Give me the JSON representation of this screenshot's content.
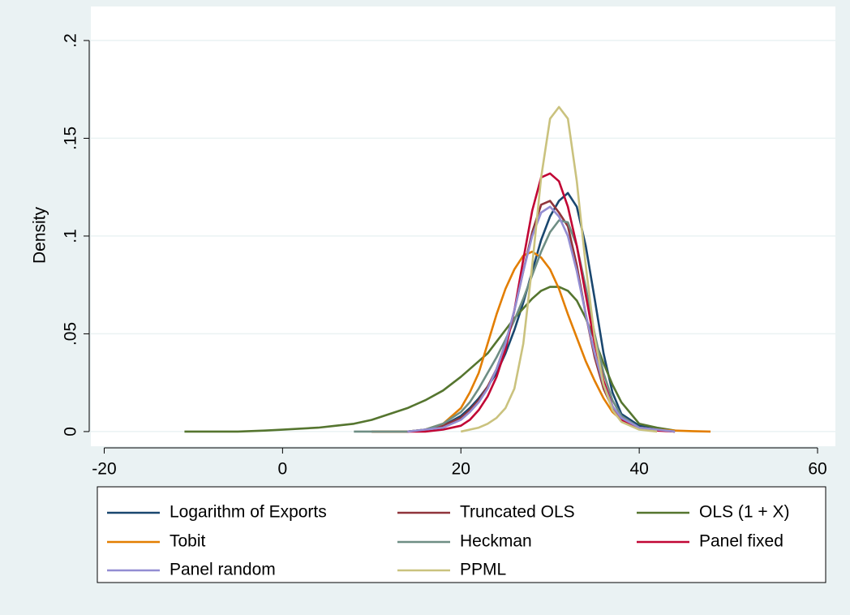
{
  "chart_data": {
    "type": "line",
    "y_label": "Density",
    "x": [
      -11,
      -8,
      -5,
      -2,
      0,
      2,
      4,
      6,
      8,
      10,
      12,
      14,
      16,
      18,
      20,
      21,
      22,
      23,
      24,
      25,
      26,
      27,
      28,
      29,
      30,
      31,
      32,
      33,
      34,
      35,
      36,
      37,
      38,
      40,
      42,
      44,
      46,
      48
    ],
    "xlim": [
      -21.5,
      62
    ],
    "xticks": [
      -20,
      0,
      20,
      40,
      60
    ],
    "ylim": [
      -0.0075,
      0.2174
    ],
    "yticks": [
      0,
      {
        "value": 0.05,
        "label": ".05"
      },
      {
        "value": 0.1,
        "label": ".1"
      },
      {
        "value": 0.15,
        "label": ".15"
      },
      {
        "value": 0.2,
        "label": ".2"
      }
    ],
    "grid": true,
    "legend_position": "bottom",
    "legend_columns": 3,
    "series": [
      {
        "name": "Logarithm of Exports",
        "color": "#1a476f",
        "values": [
          null,
          null,
          null,
          null,
          null,
          null,
          null,
          null,
          null,
          0,
          0,
          0,
          0.001,
          0.003,
          0.008,
          0.012,
          0.017,
          0.023,
          0.03,
          0.04,
          0.052,
          0.066,
          0.082,
          0.098,
          0.11,
          0.118,
          0.122,
          0.115,
          0.095,
          0.068,
          0.04,
          0.02,
          0.009,
          0.003,
          0.001,
          0,
          null,
          null
        ]
      },
      {
        "name": "Truncated OLS",
        "color": "#90353b",
        "values": [
          null,
          null,
          null,
          null,
          null,
          null,
          null,
          null,
          null,
          0,
          0,
          0,
          0.001,
          0.003,
          0.007,
          0.011,
          0.016,
          0.023,
          0.032,
          0.045,
          0.062,
          0.082,
          0.102,
          0.116,
          0.118,
          0.112,
          0.105,
          0.085,
          0.06,
          0.038,
          0.022,
          0.012,
          0.006,
          0.002,
          0.001,
          0,
          null,
          null
        ]
      },
      {
        "name": "OLS (1 + X)",
        "color": "#55752f",
        "values": [
          0,
          0,
          0,
          0.0005,
          0.001,
          0.0015,
          0.002,
          0.003,
          0.004,
          0.006,
          0.009,
          0.012,
          0.016,
          0.021,
          0.028,
          0.032,
          0.036,
          0.04,
          0.046,
          0.052,
          0.058,
          0.063,
          0.068,
          0.072,
          0.074,
          0.074,
          0.072,
          0.067,
          0.058,
          0.047,
          0.035,
          0.024,
          0.015,
          0.004,
          0.002,
          0.0005,
          null,
          null
        ]
      },
      {
        "name": "Tobit",
        "color": "#e37e00",
        "values": [
          null,
          null,
          null,
          null,
          null,
          null,
          null,
          null,
          null,
          0,
          0,
          0,
          0.001,
          0.004,
          0.012,
          0.02,
          0.03,
          0.045,
          0.06,
          0.073,
          0.083,
          0.09,
          0.092,
          0.089,
          0.083,
          0.073,
          0.06,
          0.048,
          0.036,
          0.026,
          0.017,
          0.01,
          0.006,
          0.002,
          0.001,
          0.0005,
          0.0002,
          0
        ]
      },
      {
        "name": "Heckman",
        "color": "#6e8e84",
        "values": [
          null,
          null,
          null,
          null,
          null,
          null,
          null,
          null,
          0,
          0,
          0,
          0,
          0.001,
          0.004,
          0.01,
          0.015,
          0.022,
          0.03,
          0.038,
          0.047,
          0.057,
          0.068,
          0.08,
          0.092,
          0.102,
          0.108,
          0.107,
          0.095,
          0.074,
          0.05,
          0.03,
          0.016,
          0.008,
          0.002,
          0.001,
          0,
          null,
          null
        ]
      },
      {
        "name": "Panel fixed",
        "color": "#c10534",
        "values": [
          null,
          null,
          null,
          null,
          null,
          null,
          null,
          null,
          null,
          null,
          null,
          0,
          0,
          0.001,
          0.003,
          0.006,
          0.011,
          0.018,
          0.028,
          0.042,
          0.062,
          0.088,
          0.113,
          0.13,
          0.132,
          0.128,
          0.115,
          0.095,
          0.07,
          0.045,
          0.026,
          0.013,
          0.006,
          0.002,
          0.0005,
          0,
          null,
          null
        ]
      },
      {
        "name": "Panel random",
        "color": "#938dd2",
        "values": [
          null,
          null,
          null,
          null,
          null,
          null,
          null,
          null,
          null,
          null,
          null,
          0,
          0.001,
          0.002,
          0.006,
          0.01,
          0.015,
          0.022,
          0.032,
          0.045,
          0.062,
          0.082,
          0.1,
          0.112,
          0.115,
          0.11,
          0.1,
          0.082,
          0.06,
          0.04,
          0.024,
          0.013,
          0.007,
          0.002,
          0.001,
          0,
          null,
          null
        ]
      },
      {
        "name": "PPML",
        "color": "#cac27e",
        "values": [
          null,
          null,
          null,
          null,
          null,
          null,
          null,
          null,
          null,
          null,
          null,
          null,
          null,
          null,
          0,
          0.001,
          0.002,
          0.004,
          0.007,
          0.012,
          0.022,
          0.045,
          0.085,
          0.13,
          0.16,
          0.166,
          0.16,
          0.128,
          0.085,
          0.048,
          0.024,
          0.011,
          0.005,
          0.001,
          0,
          null,
          null,
          null
        ]
      }
    ]
  }
}
